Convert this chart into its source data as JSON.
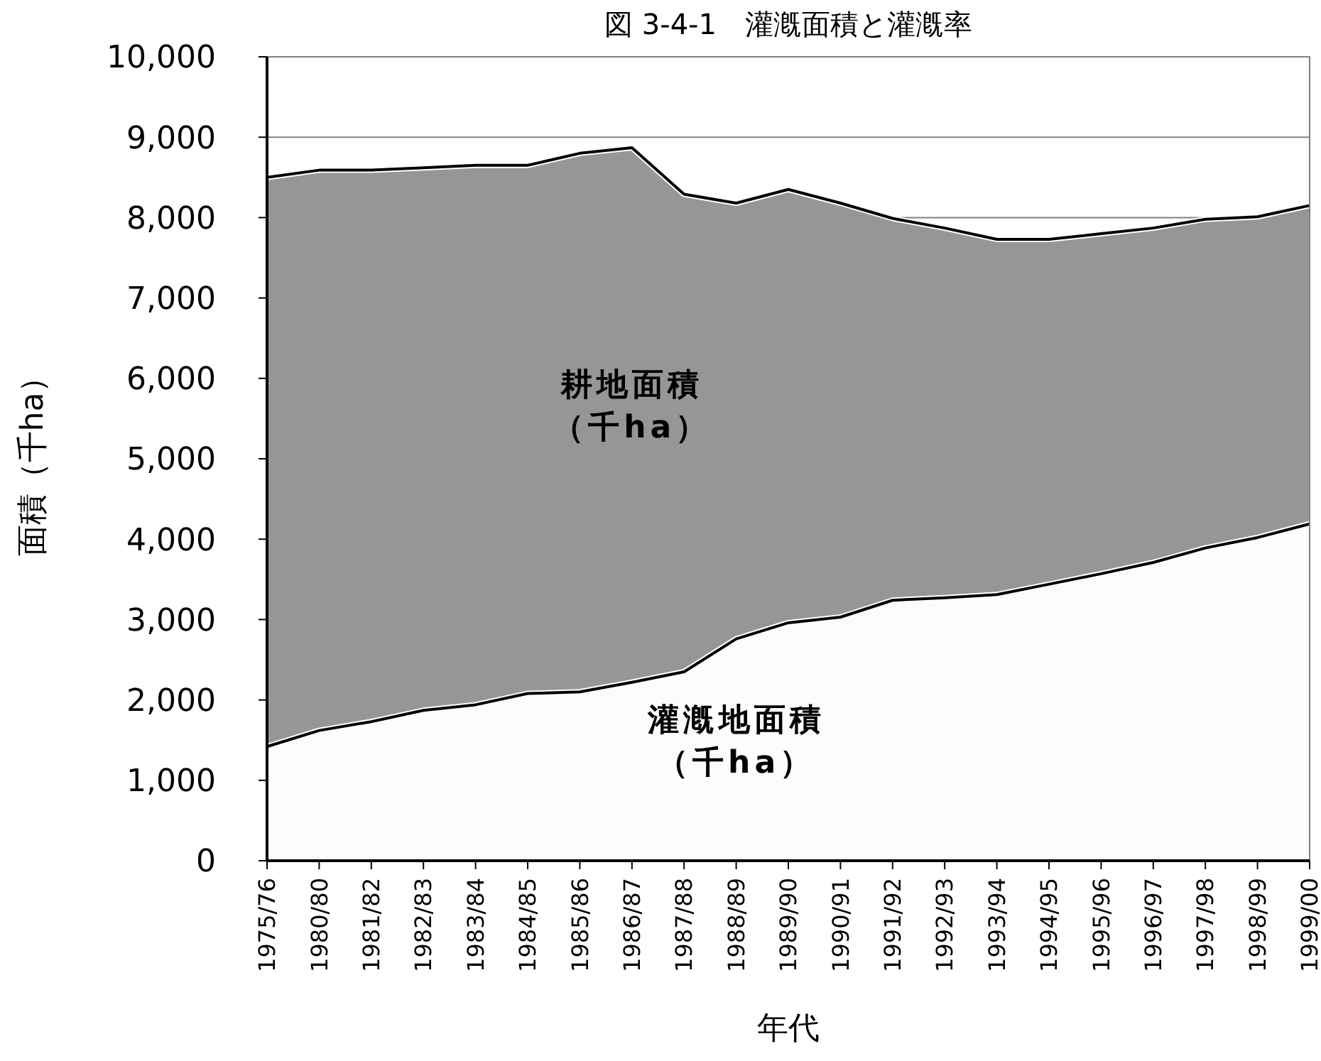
{
  "chart_data": {
    "type": "area",
    "title": "図 3-4-1　灌漑面積と灌漑率",
    "xlabel": "年代",
    "ylabel": "面積（千ha）",
    "categories": [
      "1975/76",
      "1980/80",
      "1981/82",
      "1982/83",
      "1983/84",
      "1984/85",
      "1985/86",
      "1986/87",
      "1987/88",
      "1988/89",
      "1989/90",
      "1990/91",
      "1991/92",
      "1992/93",
      "1993/94",
      "1994/95",
      "1995/96",
      "1996/97",
      "1997/98",
      "1998/99",
      "1999/00"
    ],
    "series": [
      {
        "name": "耕地面積（千ha）",
        "color": "#969696",
        "values": [
          8500,
          8590,
          8590,
          8620,
          8650,
          8650,
          8800,
          8870,
          8290,
          8180,
          8350,
          8180,
          7990,
          7870,
          7730,
          7730,
          7800,
          7870,
          7980,
          8010,
          8150
        ]
      },
      {
        "name": "灌漑地面積（千ha）",
        "color": "#fcfcfc",
        "values": [
          1420,
          1620,
          1730,
          1870,
          1940,
          2080,
          2100,
          2220,
          2350,
          2760,
          2960,
          3030,
          3240,
          3270,
          3310,
          3440,
          3570,
          3710,
          3890,
          4020,
          4190
        ]
      }
    ],
    "ylim": [
      0,
      10000
    ],
    "yticks": [
      0,
      {
        "value": 1000,
        "label": "1,000"
      },
      {
        "value": 2000,
        "label": "2,000"
      },
      {
        "value": 3000,
        "label": "3,000"
      },
      {
        "value": 4000,
        "label": "4,000"
      },
      {
        "value": 5000,
        "label": "5,000"
      },
      {
        "value": 6000,
        "label": "6,000"
      },
      {
        "value": 7000,
        "label": "7,000"
      },
      {
        "value": 8000,
        "label": "8,000"
      },
      {
        "value": 9000,
        "label": "9,000"
      },
      {
        "value": 10000,
        "label": "10,000"
      }
    ],
    "grid": "y"
  }
}
